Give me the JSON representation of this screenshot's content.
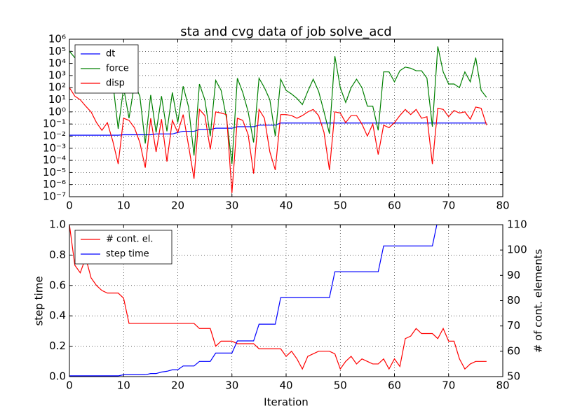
{
  "chart_data": [
    {
      "type": "line",
      "title": "sta and cvg data of job solve_acd",
      "log_y": true,
      "grid": true,
      "legend": "upper left",
      "x": [
        0,
        1,
        2,
        3,
        4,
        5,
        6,
        7,
        8,
        9,
        10,
        11,
        12,
        13,
        14,
        15,
        16,
        17,
        18,
        19,
        20,
        21,
        22,
        23,
        24,
        25,
        26,
        27,
        28,
        29,
        30,
        31,
        32,
        33,
        34,
        35,
        36,
        37,
        38,
        39,
        40,
        41,
        42,
        43,
        44,
        45,
        46,
        47,
        48,
        49,
        50,
        51,
        52,
        53,
        54,
        55,
        56,
        57,
        58,
        59,
        60,
        61,
        62,
        63,
        64,
        65,
        66,
        67,
        68,
        69,
        70,
        71,
        72,
        73,
        74,
        75,
        76,
        77
      ],
      "xlim": [
        0,
        80
      ],
      "xticks": [
        0,
        10,
        20,
        30,
        40,
        50,
        60,
        70,
        80
      ],
      "ylim": [
        1e-07,
        1000000.0
      ],
      "yticks": [
        {
          "value": 1e-07,
          "label": "10⁻⁷"
        },
        {
          "value": 1e-06,
          "label": "10⁻⁶"
        },
        {
          "value": 1e-05,
          "label": "10⁻⁵"
        },
        {
          "value": 0.0001,
          "label": "10⁻⁴"
        },
        {
          "value": 0.001,
          "label": "10⁻³"
        },
        {
          "value": 0.01,
          "label": "10⁻²"
        },
        {
          "value": 0.1,
          "label": "10⁻¹"
        },
        {
          "value": 1,
          "label": "10⁰"
        },
        {
          "value": 10,
          "label": "10¹"
        },
        {
          "value": 100,
          "label": "10²"
        },
        {
          "value": 1000,
          "label": "10³"
        },
        {
          "value": 10000,
          "label": "10⁴"
        },
        {
          "value": 100000,
          "label": "10⁵"
        },
        {
          "value": 1000000,
          "label": "10⁶"
        }
      ],
      "series": [
        {
          "name": "dt",
          "color": "#0000ff",
          "values": [
            0.012,
            0.012,
            0.012,
            0.012,
            0.012,
            0.012,
            0.012,
            0.012,
            0.012,
            0.012,
            0.013,
            0.013,
            0.013,
            0.013,
            0.013,
            0.013,
            0.015,
            0.015,
            0.015,
            0.015,
            0.02,
            0.025,
            0.025,
            0.025,
            0.035,
            0.035,
            0.035,
            0.045,
            0.045,
            0.045,
            0.045,
            0.06,
            0.06,
            0.06,
            0.06,
            0.08,
            0.08,
            0.08,
            0.08,
            0.12,
            0.12,
            0.12,
            0.12,
            0.12,
            0.12,
            0.12,
            0.12,
            0.12,
            0.12,
            0.12,
            0.12,
            0.12,
            0.12,
            0.12,
            0.12,
            0.12,
            0.12,
            0.12,
            0.12,
            0.12,
            0.12,
            0.12,
            0.12,
            0.12,
            0.12,
            0.12,
            0.12,
            0.12,
            0.12,
            0.12,
            0.12,
            0.12,
            0.12,
            0.12,
            0.12,
            0.12,
            0.12,
            0.12
          ]
        },
        {
          "name": "force",
          "color": "#008000",
          "values": [
            100000.0,
            30000.0,
            30000.0,
            20000.0,
            25000.0,
            20000.0,
            10000.0,
            10000.0,
            300,
            0.04,
            100,
            0.3,
            200,
            20,
            0.0025,
            25,
            0.02,
            20,
            0.025,
            40,
            0.13,
            130,
            2.5,
            0.00025,
            200,
            10,
            0.01,
            400,
            60,
            0.3,
            5e-05,
            600,
            40,
            1,
            0.003,
            600,
            100,
            10,
            0.01,
            500,
            60,
            30,
            13,
            4,
            50,
            500,
            50,
            1,
            0.016,
            40000.0,
            100,
            6,
            100,
            500,
            100,
            3,
            3,
            0.03,
            2000,
            2000,
            300,
            2500,
            5000,
            4000,
            2500,
            2500,
            600,
            0.06,
            250000.0,
            2000,
            200,
            200,
            100,
            2000,
            300,
            30000.0,
            60,
            16
          ]
        },
        {
          "name": "disp",
          "color": "#ff0000",
          "values": [
            100,
            20,
            10,
            3,
            1,
            0.13,
            0.03,
            0.13,
            0.004,
            5e-05,
            0.3,
            0.2,
            0.05,
            0.003,
            2.5e-05,
            0.3,
            0.0005,
            0.25,
            8e-05,
            0.2,
            0.02,
            0.6,
            0.0016,
            3e-06,
            1.6,
            0.5,
            0.0008,
            1,
            0.8,
            0.6,
            2e-07,
            0.3,
            0.2,
            0.013,
            8e-06,
            1.6,
            0.3,
            0.0005,
            1.6e-05,
            0.6,
            0.6,
            0.5,
            0.3,
            0.5,
            1,
            1.6,
            0.5,
            0.02,
            1.6e-05,
            1,
            0.8,
            0.13,
            0.5,
            0.5,
            0.1,
            0.01,
            0.1,
            0.0003,
            0.08,
            0.05,
            0.13,
            0.5,
            1.6,
            0.6,
            1.6,
            0.3,
            0.4,
            5e-05,
            2,
            1.6,
            0.4,
            1.3,
            0.8,
            1,
            0.25,
            2.5,
            2,
            0.08
          ]
        }
      ]
    },
    {
      "type": "line",
      "xlabel": "Iteration",
      "ylabel": "step time",
      "y2label": "# of cont. elements",
      "grid": true,
      "legend": "upper left",
      "x": [
        0,
        1,
        2,
        3,
        4,
        5,
        6,
        7,
        8,
        9,
        10,
        11,
        12,
        13,
        14,
        15,
        16,
        17,
        18,
        19,
        20,
        21,
        22,
        23,
        24,
        25,
        26,
        27,
        28,
        29,
        30,
        31,
        32,
        33,
        34,
        35,
        36,
        37,
        38,
        39,
        40,
        41,
        42,
        43,
        44,
        45,
        46,
        47,
        48,
        49,
        50,
        51,
        52,
        53,
        54,
        55,
        56,
        57,
        58,
        59,
        60,
        61,
        62,
        63,
        64,
        65,
        66,
        67,
        68,
        69,
        70,
        71,
        72,
        73,
        74,
        75,
        76,
        77
      ],
      "xlim": [
        0,
        80
      ],
      "xticks": [
        0,
        10,
        20,
        30,
        40,
        50,
        60,
        70,
        80
      ],
      "ylim": [
        0,
        1
      ],
      "yticks": [
        {
          "value": 0,
          "label": "0.0"
        },
        {
          "value": 0.2,
          "label": "0.2"
        },
        {
          "value": 0.4,
          "label": "0.4"
        },
        {
          "value": 0.6,
          "label": "0.6"
        },
        {
          "value": 0.8,
          "label": "0.8"
        },
        {
          "value": 1,
          "label": "1.0"
        }
      ],
      "y2lim": [
        50,
        110
      ],
      "y2ticks": [
        50,
        60,
        70,
        80,
        90,
        100,
        110
      ],
      "series": [
        {
          "name": "# cont. el.",
          "color": "#ff0000",
          "axis": "y2",
          "values": [
            110,
            94,
            91,
            97,
            89,
            86,
            84,
            83,
            83,
            83,
            81,
            71,
            71,
            71,
            71,
            71,
            71,
            71,
            71,
            71,
            71,
            71,
            71,
            71,
            69,
            69,
            69,
            62,
            64,
            64,
            64,
            63,
            63,
            63,
            63,
            61,
            61,
            61,
            61,
            61,
            58,
            60,
            57,
            53,
            58,
            59,
            60,
            60,
            60,
            59,
            53,
            56,
            58,
            55,
            57,
            56,
            55,
            55,
            57,
            53,
            57,
            54,
            65,
            66,
            69,
            67,
            67,
            67,
            65,
            69,
            64,
            64,
            57,
            53,
            55,
            56,
            56,
            56
          ]
        },
        {
          "name": "step time",
          "color": "#0000ff",
          "values": [
            0.005,
            0.005,
            0.005,
            0.005,
            0.005,
            0.005,
            0.005,
            0.005,
            0.005,
            0.005,
            0.012,
            0.012,
            0.012,
            0.012,
            0.012,
            0.02,
            0.02,
            0.03,
            0.035,
            0.045,
            0.045,
            0.07,
            0.07,
            0.07,
            0.1,
            0.1,
            0.1,
            0.155,
            0.155,
            0.155,
            0.155,
            0.235,
            0.235,
            0.235,
            0.235,
            0.345,
            0.345,
            0.345,
            0.345,
            0.52,
            0.52,
            0.52,
            0.52,
            0.52,
            0.52,
            0.52,
            0.52,
            0.52,
            0.52,
            0.69,
            0.69,
            0.69,
            0.69,
            0.69,
            0.69,
            0.69,
            0.69,
            0.69,
            0.86,
            0.86,
            0.86,
            0.86,
            0.86,
            0.86,
            0.86,
            0.86,
            0.86,
            0.86,
            1.03,
            1.03,
            1.03,
            1.03,
            1.03,
            1.03,
            1.03,
            1.03,
            1.03,
            1.03
          ]
        }
      ]
    }
  ]
}
